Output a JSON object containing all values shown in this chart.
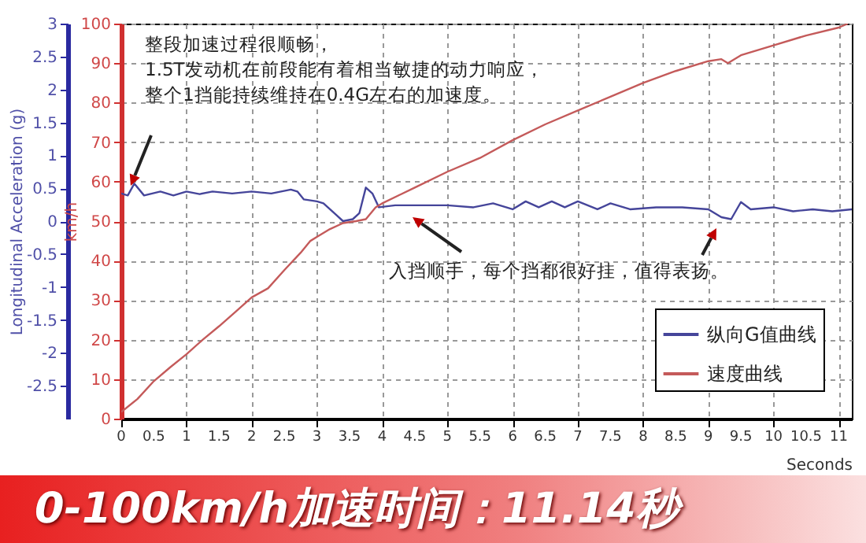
{
  "chart_data": {
    "type": "line",
    "title": "0-100km/h加速时间：11.14秒",
    "xlabel": "Seconds",
    "ylabel": "Longitudinal Acceleration (g)",
    "y2label": "km/h",
    "annotations": [
      "整段加速过程很顺畅，",
      "1.5T发动机在前段能有着相当敏捷的动力响应，",
      "整个1挡能持续维持在0.4G左右的加速度。",
      "入挡顺手，每个挡都很好挂，值得表扬。"
    ],
    "series": [
      {
        "name": "纵向G值曲线",
        "color": "#45459a",
        "x": [
          0,
          0.1,
          0.2,
          0.35,
          0.6,
          0.8,
          1.0,
          1.2,
          1.4,
          1.7,
          2.0,
          2.3,
          2.6,
          2.7,
          2.8,
          3.0,
          3.1,
          3.3,
          3.4,
          3.55,
          3.65,
          3.75,
          3.85,
          3.95,
          4.2,
          5.0,
          5.4,
          5.7,
          6.0,
          6.2,
          6.4,
          6.6,
          6.8,
          7.0,
          7.3,
          7.5,
          7.8,
          8.2,
          8.6,
          9.0,
          9.2,
          9.35,
          9.5,
          9.65,
          10.0,
          10.3,
          10.6,
          10.9,
          11.2
        ],
        "values": [
          0.42,
          0.39,
          0.57,
          0.39,
          0.45,
          0.39,
          0.45,
          0.41,
          0.45,
          0.42,
          0.45,
          0.42,
          0.48,
          0.45,
          0.33,
          0.3,
          0.27,
          0.09,
          0,
          0.03,
          0.12,
          0.51,
          0.42,
          0.21,
          0.24,
          0.24,
          0.21,
          0.27,
          0.18,
          0.3,
          0.21,
          0.3,
          0.21,
          0.3,
          0.18,
          0.27,
          0.18,
          0.21,
          0.21,
          0.18,
          0.06,
          0.03,
          0.29,
          0.18,
          0.21,
          0.15,
          0.18,
          0.15,
          0.18
        ]
      },
      {
        "name": "速度曲线",
        "color": "#c45a5a",
        "axis": "y2",
        "x": [
          0,
          0.25,
          0.5,
          0.75,
          1,
          1.25,
          1.5,
          1.75,
          2,
          2.25,
          2.5,
          2.75,
          2.9,
          3.0,
          3.2,
          3.4,
          3.6,
          3.75,
          3.9,
          4.0,
          4.5,
          5,
          5.5,
          6,
          6.5,
          7,
          7.5,
          8,
          8.5,
          9,
          9.2,
          9.3,
          9.5,
          10,
          10.5,
          11,
          11.14
        ],
        "values": [
          1.7,
          5,
          9.5,
          13,
          16.3,
          20,
          23.4,
          27,
          30.7,
          33,
          37.6,
          42,
          45,
          46,
          48,
          49.5,
          50,
          50.5,
          53.5,
          54.5,
          58.5,
          62.5,
          66,
          70.5,
          74.5,
          78,
          81.5,
          85,
          88,
          90.5,
          91,
          90,
          92,
          94.5,
          97,
          99,
          100
        ]
      }
    ],
    "xlim": [
      0,
      11.2
    ],
    "xticks": [
      0,
      0.5,
      1,
      1.5,
      2,
      2.5,
      3,
      3.5,
      4,
      4.5,
      5,
      5.5,
      6,
      6.5,
      7,
      7.5,
      8,
      8.5,
      9,
      9.5,
      10,
      10.5,
      11
    ],
    "ylim": [
      -3,
      3
    ],
    "yticks": [
      -2.5,
      -2,
      -1.5,
      -1,
      -0.5,
      0,
      0.5,
      1,
      1.5,
      2,
      2.5,
      3
    ],
    "y2lim": [
      0,
      100
    ],
    "y2ticks": [
      0,
      10,
      20,
      30,
      40,
      50,
      60,
      70,
      80,
      90,
      100
    ],
    "grid": true,
    "legend": "bottom right"
  }
}
